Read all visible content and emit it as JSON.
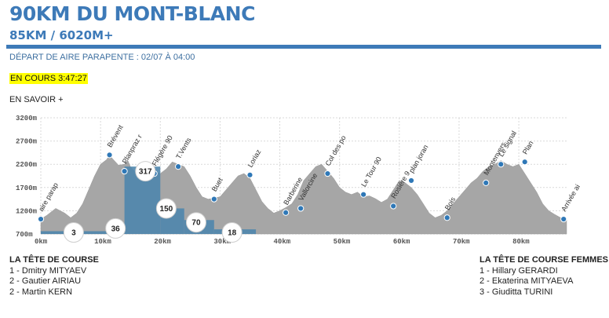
{
  "header": {
    "title": "90KM DU MONT-BLANC",
    "subtitle": "85KM / 6020M+",
    "depart": "DÉPART DE AIRE PARAPENTE : 02/07 À 04:00",
    "status": "EN COURS 3:47:27",
    "more_link": "EN SAVOIR +"
  },
  "colors": {
    "accent": "#3d7ab8",
    "profile": "#a6a6a6",
    "progress": "#4f86ad",
    "marker": "#2f78b7",
    "status_highlight": "#ffff00"
  },
  "chart_data": {
    "type": "area",
    "title": "",
    "xlabel": "",
    "ylabel": "",
    "x_unit": "km",
    "y_unit": "m",
    "xlim": [
      0,
      88
    ],
    "ylim": [
      700,
      3200
    ],
    "y_ticks": [
      700,
      1200,
      1700,
      2200,
      2700,
      3200
    ],
    "y_tick_labels": [
      "700m",
      "1200m",
      "1700m",
      "2200m",
      "2700m",
      "3200m"
    ],
    "x_ticks": [
      0,
      10,
      20,
      30,
      40,
      50,
      60,
      70,
      80
    ],
    "x_tick_labels": [
      "0km",
      "10km",
      "20km",
      "30km",
      "40km",
      "50km",
      "60km",
      "70km",
      "80km"
    ],
    "grid": true,
    "profile": {
      "x": [
        0,
        1,
        2.5,
        4,
        5,
        6,
        7,
        8,
        9,
        10,
        11,
        11.5,
        12,
        13,
        14,
        14.5,
        15,
        16,
        17,
        18,
        19,
        20,
        21,
        22,
        23,
        24,
        25,
        26,
        27,
        28,
        29,
        30,
        31,
        32,
        33,
        34,
        35,
        36,
        37,
        38,
        39,
        40,
        41,
        42,
        43,
        44,
        45,
        46,
        47,
        48,
        49,
        50,
        51,
        52,
        53,
        54,
        55,
        56,
        57,
        58,
        59,
        60,
        61,
        62,
        63,
        64,
        65,
        66,
        67,
        68,
        69,
        70,
        71,
        72,
        73,
        74,
        75,
        76,
        77,
        78,
        79,
        80,
        81,
        82,
        83,
        84,
        85,
        86,
        87,
        88
      ],
      "y": [
        1020,
        1100,
        1250,
        1150,
        1050,
        1150,
        1350,
        1650,
        1950,
        2200,
        2300,
        2400,
        2320,
        2180,
        2200,
        2300,
        2150,
        2000,
        1950,
        2000,
        2050,
        2000,
        2100,
        2250,
        2200,
        2150,
        1950,
        1700,
        1500,
        1450,
        1470,
        1500,
        1650,
        1800,
        1950,
        2000,
        1900,
        1650,
        1400,
        1250,
        1150,
        1200,
        1270,
        1350,
        1550,
        1850,
        2000,
        2150,
        2200,
        2050,
        1900,
        1700,
        1600,
        1550,
        1600,
        1500,
        1520,
        1460,
        1380,
        1450,
        1650,
        1850,
        1800,
        1700,
        1550,
        1350,
        1150,
        1050,
        1100,
        1200,
        1350,
        1500,
        1650,
        1800,
        1900,
        2050,
        2150,
        2200,
        2280,
        2200,
        2150,
        2200,
        2000,
        1800,
        1600,
        1350,
        1200,
        1120,
        1050,
        1000
      ]
    },
    "progress_blocks": [
      {
        "from": 0,
        "to": 11,
        "elevation": 760
      },
      {
        "from": 11,
        "to": 14,
        "elevation": 780
      },
      {
        "from": 14,
        "to": 20,
        "elevation": 2150
      },
      {
        "from": 20,
        "to": 24,
        "elevation": 1250
      },
      {
        "from": 24,
        "to": 29,
        "elevation": 1000
      },
      {
        "from": 29,
        "to": 36,
        "elevation": 800
      }
    ],
    "waypoints": [
      {
        "name": "aire parap",
        "km": 0,
        "alt": 1020
      },
      {
        "name": "Brévent",
        "km": 11.5,
        "alt": 2400
      },
      {
        "name": "Planpraz r",
        "km": 14,
        "alt": 2050
      },
      {
        "name": "Flégère 90",
        "km": 19,
        "alt": 2000
      },
      {
        "name": "T.Vents",
        "km": 23,
        "alt": 2150
      },
      {
        "name": "Buet",
        "km": 29,
        "alt": 1450
      },
      {
        "name": "Loriaz",
        "km": 35,
        "alt": 1970
      },
      {
        "name": "Barberine",
        "km": 41,
        "alt": 1160
      },
      {
        "name": "Vallorcine",
        "km": 43.5,
        "alt": 1250
      },
      {
        "name": "Col des po",
        "km": 48,
        "alt": 2000
      },
      {
        "name": "Le Tour 90",
        "km": 54,
        "alt": 1550
      },
      {
        "name": "Rosière 9",
        "km": 59,
        "alt": 1300
      },
      {
        "name": "plan joran",
        "km": 62,
        "alt": 1850
      },
      {
        "name": "Bois",
        "km": 68,
        "alt": 1050
      },
      {
        "name": "Montenvers",
        "km": 74.5,
        "alt": 1800
      },
      {
        "name": "Le signal",
        "km": 77,
        "alt": 2200
      },
      {
        "name": "Plan",
        "km": 81,
        "alt": 2250
      },
      {
        "name": "Arrivée ai",
        "km": 87.5,
        "alt": 1020
      }
    ],
    "runner_counts": [
      {
        "count": "3",
        "km": 5.5,
        "alt": 700
      },
      {
        "count": "36",
        "km": 12.5,
        "alt": 820
      },
      {
        "count": "317",
        "km": 17.5,
        "alt": 2050
      },
      {
        "count": "150",
        "km": 21,
        "alt": 1250
      },
      {
        "count": "70",
        "km": 26,
        "alt": 950
      },
      {
        "count": "18",
        "km": 32,
        "alt": 730
      }
    ]
  },
  "rankings": {
    "men": {
      "title": "LA TÊTE DE COURSE",
      "rows": [
        "1 - Dmitry MITYAEV",
        "2 - Gautier AIRIAU",
        "2 - Martin KERN"
      ]
    },
    "women": {
      "title": "LA TÊTE DE COURSE FEMMES",
      "rows": [
        "1 - Hillary GERARDI",
        "2 - Ekaterina MITYAEVA",
        "3 - Giuditta TURINI"
      ]
    }
  }
}
